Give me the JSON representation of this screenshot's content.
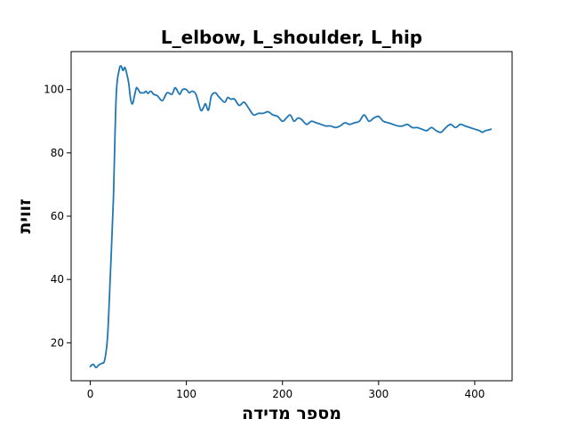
{
  "chart_data": {
    "type": "line",
    "title": "L_elbow, L_shoulder, L_hip",
    "xlabel": "מספר מדידה",
    "ylabel": "זווית",
    "xlim": [
      -19.9,
      438.9
    ],
    "ylim": [
      8.0,
      112.0
    ],
    "xticks": [
      0,
      100,
      200,
      300,
      400
    ],
    "yticks": [
      20,
      40,
      60,
      80,
      100
    ],
    "grid": false,
    "color": "#1f77b4",
    "series": [
      {
        "x": [
          0,
          3,
          6,
          9,
          12,
          15,
          18,
          21,
          24,
          27,
          30,
          32,
          34,
          36,
          38,
          40,
          42,
          44,
          46,
          48,
          50,
          52,
          54,
          56,
          58,
          60,
          63,
          66,
          70,
          75,
          80,
          85,
          88,
          90,
          93,
          96,
          100,
          103,
          106,
          110,
          115,
          118,
          120,
          123,
          126,
          130,
          133,
          136,
          140,
          143,
          146,
          150,
          155,
          160,
          165,
          170,
          175,
          180,
          185,
          190,
          195,
          200,
          204,
          208,
          212,
          216,
          220,
          225,
          230,
          235,
          240,
          245,
          250,
          255,
          260,
          265,
          270,
          275,
          280,
          285,
          290,
          295,
          300,
          305,
          310,
          315,
          320,
          325,
          330,
          335,
          340,
          345,
          350,
          355,
          360,
          365,
          370,
          375,
          380,
          385,
          390,
          395,
          400,
          405,
          408,
          411,
          414,
          417
        ],
        "values": [
          12.5,
          13.2,
          12.2,
          13.0,
          13.5,
          14.5,
          22,
          42,
          65,
          98,
          106,
          107.5,
          106,
          107,
          105,
          102,
          97,
          95.5,
          98,
          100.5,
          100,
          99,
          99,
          99,
          99.5,
          98.8,
          99.5,
          98.5,
          98,
          96.5,
          99,
          98.5,
          100.5,
          100,
          98.5,
          100,
          100,
          99,
          99.5,
          98.5,
          93.5,
          94.5,
          95.5,
          93.5,
          98,
          99,
          98,
          97,
          96,
          97.5,
          97,
          97,
          95,
          96,
          94,
          92,
          92.5,
          92.5,
          93,
          92,
          91.5,
          90,
          91,
          92,
          90,
          91,
          90.5,
          89,
          90,
          89.5,
          89,
          88.5,
          88.5,
          88,
          88.5,
          89.5,
          89,
          89.5,
          90,
          92,
          90,
          91,
          91.5,
          90,
          89.5,
          89,
          88.5,
          88.5,
          89,
          88,
          88,
          87.5,
          87,
          88,
          87,
          86.5,
          88,
          89,
          88,
          89,
          88.5,
          88,
          87.5,
          87,
          86.5,
          87,
          87.2,
          87.5
        ]
      }
    ]
  }
}
